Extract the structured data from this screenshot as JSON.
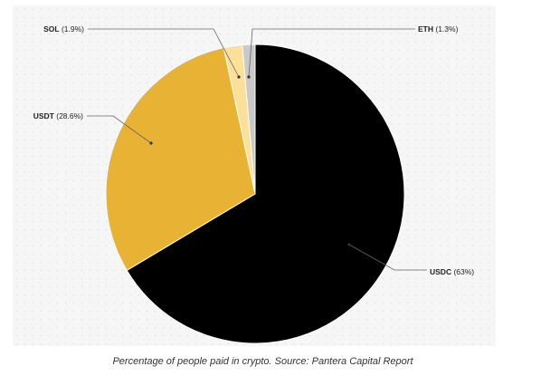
{
  "chart_data": {
    "type": "pie",
    "slices": [
      {
        "label": "USDC",
        "value": 63,
        "display": "USDC (63%)",
        "color": "#000000"
      },
      {
        "label": "USDT",
        "value": 28.6,
        "display": "USDT (28.6%)",
        "color": "#e8b234"
      },
      {
        "label": "SOL",
        "value": 1.9,
        "display": "SOL (1.9%)",
        "color": "#fbe09a"
      },
      {
        "label": "ETH",
        "value": 1.3,
        "display": "ETH (1.3%)",
        "color": "#c9c9c9"
      }
    ]
  },
  "caption": "Percentage of people paid in crypto. Source: Pantera Capital Report"
}
